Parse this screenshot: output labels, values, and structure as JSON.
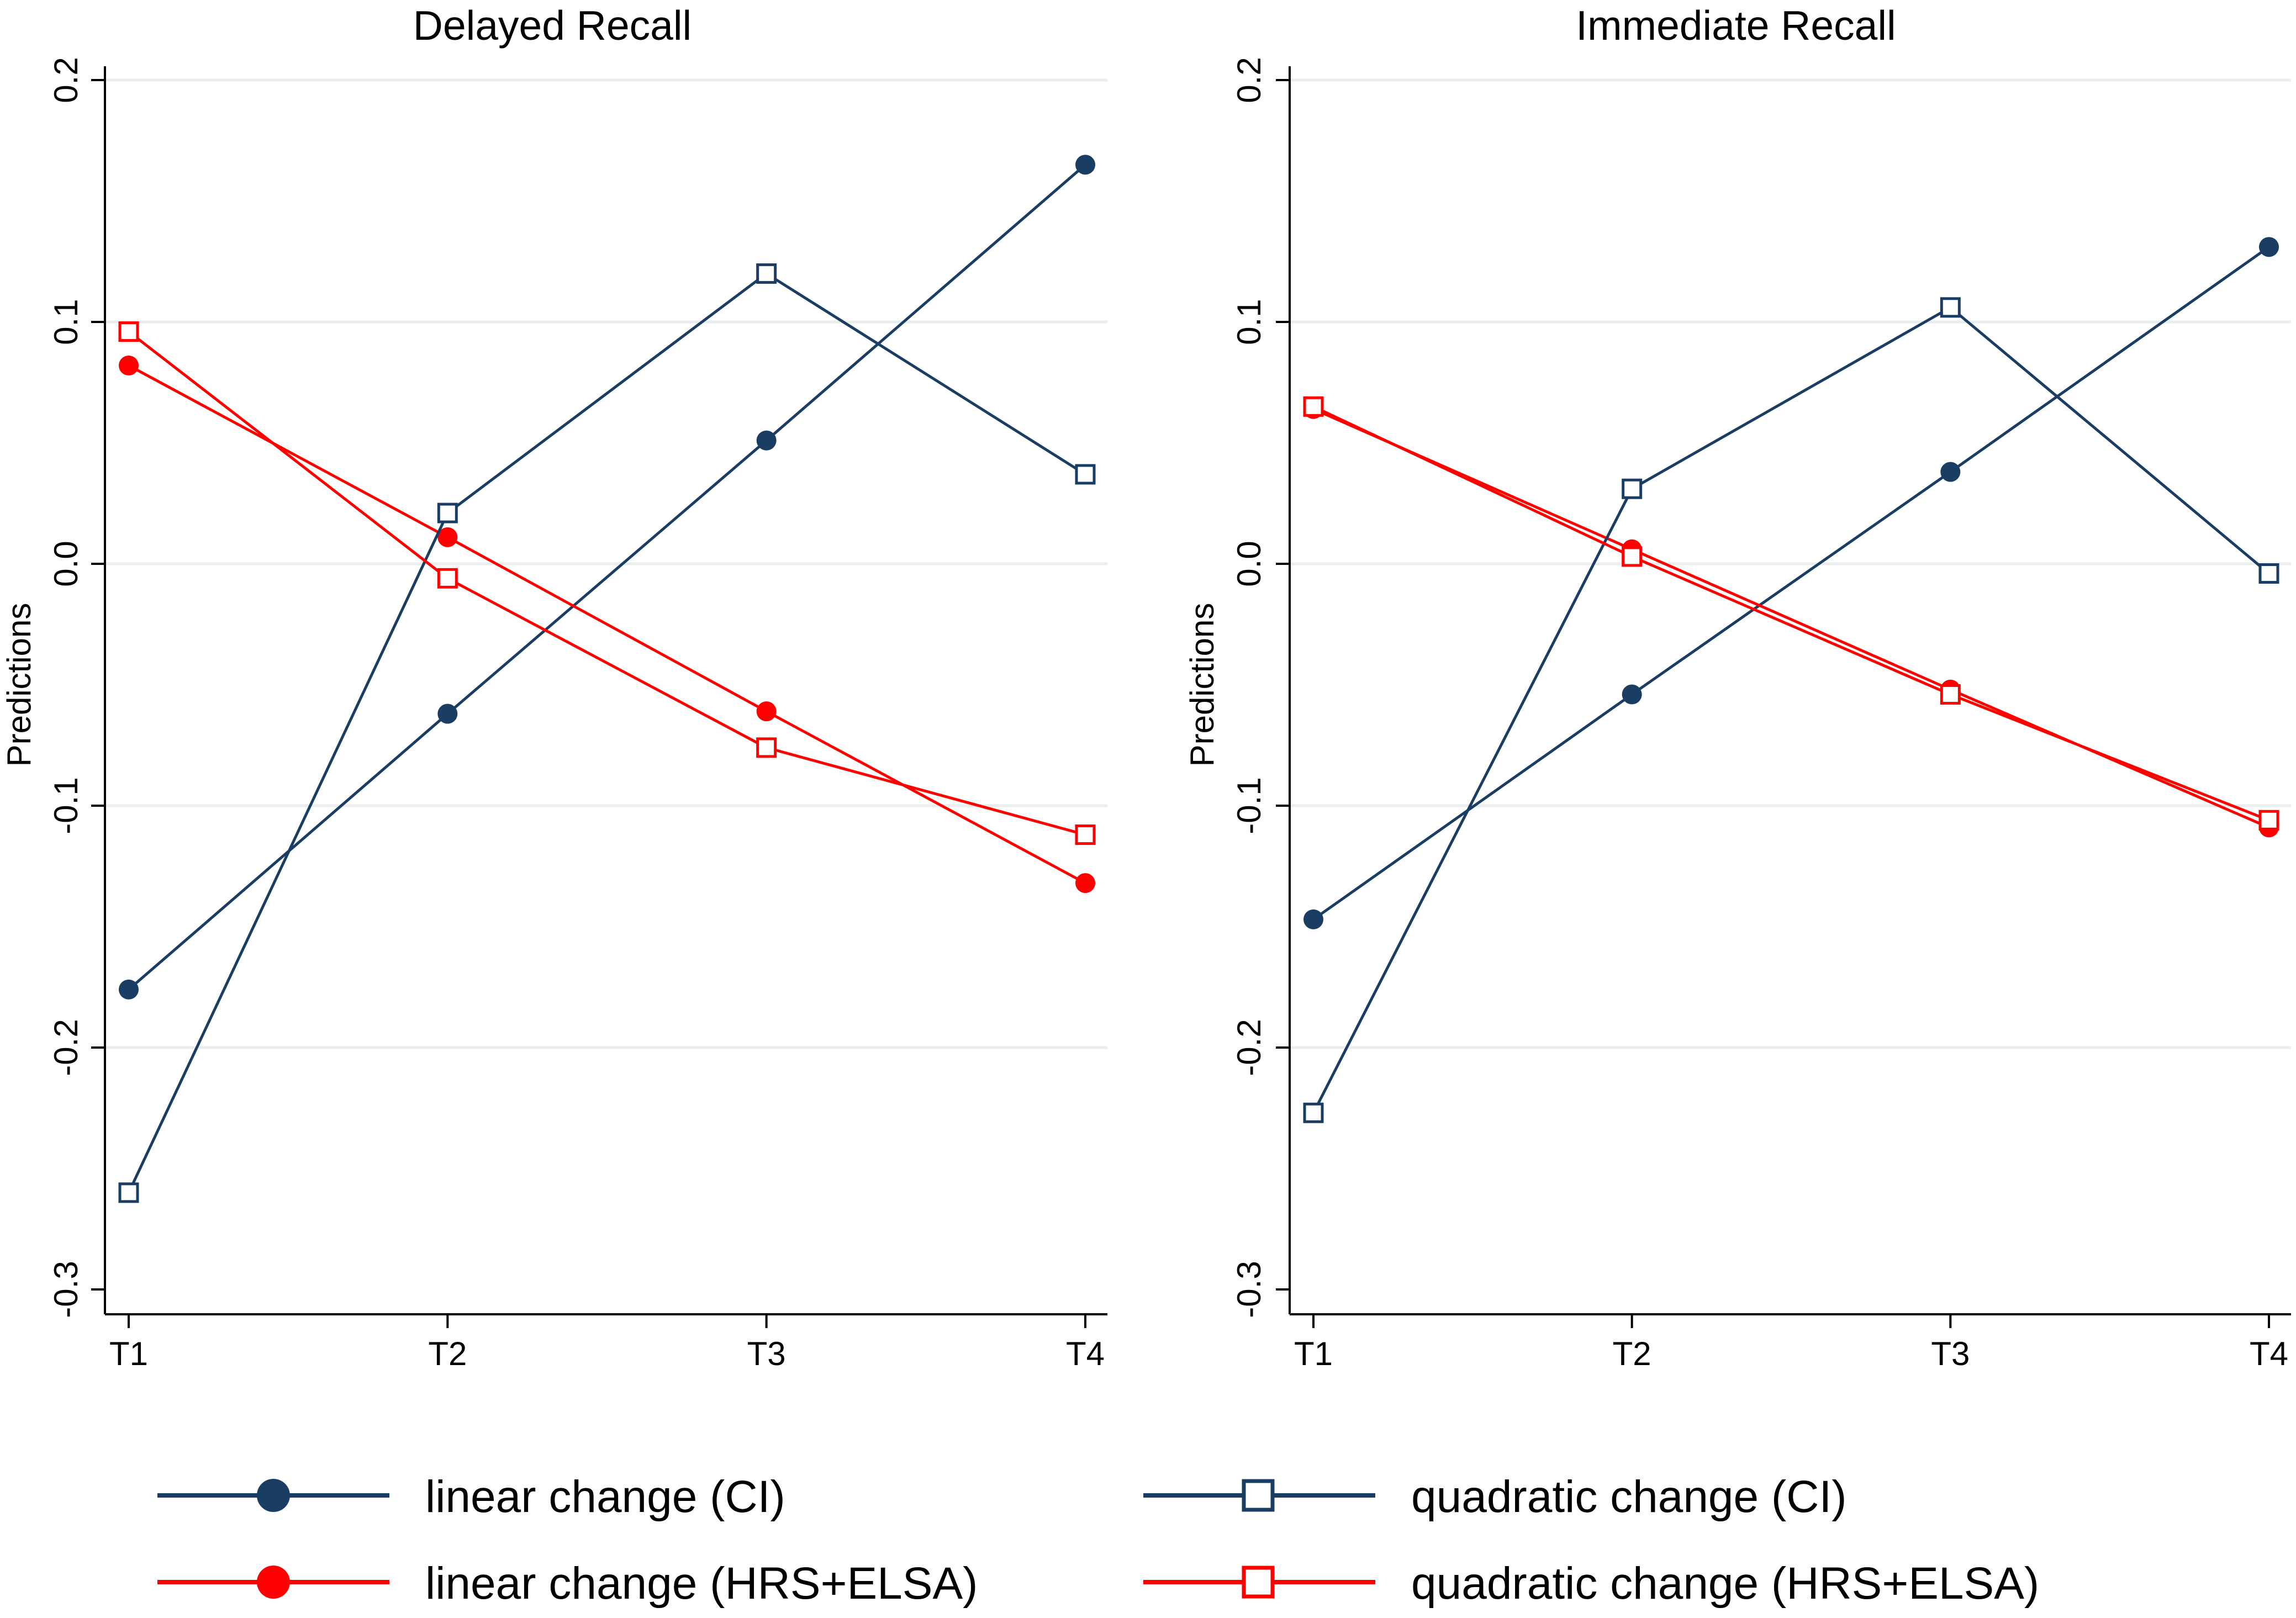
{
  "chart_data": [
    {
      "type": "line",
      "title": "Delayed Recall",
      "xlabel": "",
      "ylabel": "Predictions",
      "categories": [
        "T1",
        "T2",
        "T3",
        "T4"
      ],
      "ylim": [
        -0.3,
        0.2
      ],
      "yticks": [
        "-0.3",
        "-0.2",
        "-0.1",
        "0.0",
        "0.1",
        "0.2"
      ],
      "grid": true,
      "series": [
        {
          "name": "linear change (CI)",
          "values": [
            -0.176,
            -0.062,
            0.051,
            0.165
          ]
        },
        {
          "name": "linear change (HRS+ELSA)",
          "values": [
            0.082,
            0.011,
            -0.061,
            -0.132
          ]
        },
        {
          "name": "quadratic change (CI)",
          "values": [
            -0.26,
            0.021,
            0.12,
            0.037
          ]
        },
        {
          "name": "quadratic change (HRS+ELSA)",
          "values": [
            0.096,
            -0.006,
            -0.076,
            -0.112
          ]
        }
      ]
    },
    {
      "type": "line",
      "title": "Immediate Recall",
      "xlabel": "",
      "ylabel": "Predictions",
      "categories": [
        "T1",
        "T2",
        "T3",
        "T4"
      ],
      "ylim": [
        -0.3,
        0.2
      ],
      "yticks": [
        "-0.3",
        "-0.2",
        "-0.1",
        "0.0",
        "0.1",
        "0.2"
      ],
      "grid": true,
      "series": [
        {
          "name": "linear change (CI)",
          "values": [
            -0.147,
            -0.054,
            0.038,
            0.131
          ]
        },
        {
          "name": "linear change (HRS+ELSA)",
          "values": [
            0.064,
            0.006,
            -0.052,
            -0.109
          ]
        },
        {
          "name": "quadratic change (CI)",
          "values": [
            -0.227,
            0.031,
            0.106,
            -0.004
          ]
        },
        {
          "name": "quadratic change (HRS+ELSA)",
          "values": [
            0.065,
            0.003,
            -0.054,
            -0.106
          ]
        }
      ]
    }
  ],
  "legend": {
    "position": "bottom",
    "items": [
      {
        "label": "linear change (CI)",
        "marker": "filled-circle",
        "color": "#1a3d63"
      },
      {
        "label": "quadratic change (CI)",
        "marker": "hollow-square",
        "color": "#1a3d63"
      },
      {
        "label": "linear change (HRS+ELSA)",
        "marker": "filled-circle",
        "color": "#ff0000"
      },
      {
        "label": "quadratic change (HRS+ELSA)",
        "marker": "hollow-square",
        "color": "#ff0000"
      }
    ]
  },
  "colors": {
    "ci": "#1a3d63",
    "hrs_elsa": "#ff0000",
    "grid": "#e8eeee",
    "axis": "#000000"
  },
  "series_style": [
    {
      "marker": "filled-circle",
      "color": "#1a3d63"
    },
    {
      "marker": "filled-circle",
      "color": "#ff0000"
    },
    {
      "marker": "hollow-square",
      "color": "#1a3d63"
    },
    {
      "marker": "hollow-square",
      "color": "#ff0000"
    }
  ]
}
